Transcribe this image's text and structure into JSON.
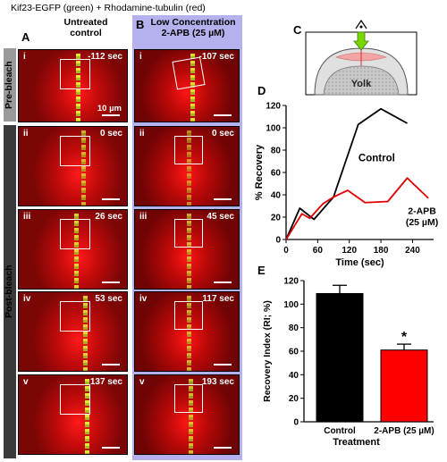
{
  "figure_title": "Kif23-EGFP (green) + Rhodamine-tubulin (red)",
  "panels": {
    "A": {
      "letter": "A",
      "header": [
        "Untreated",
        "control"
      ],
      "scale": "10 µm",
      "frames": [
        {
          "roman": "i",
          "time": "-112 sec"
        },
        {
          "roman": "ii",
          "time": "0 sec"
        },
        {
          "roman": "iii",
          "time": "26 sec"
        },
        {
          "roman": "iv",
          "time": "53 sec"
        },
        {
          "roman": "v",
          "time": "137 sec"
        }
      ]
    },
    "B": {
      "letter": "B",
      "header": [
        "Low Concentration",
        "2-APB (25 µM)"
      ],
      "frames": [
        {
          "roman": "i",
          "time": "-107 sec"
        },
        {
          "roman": "ii",
          "time": "0 sec"
        },
        {
          "roman": "iii",
          "time": "45 sec"
        },
        {
          "roman": "iv",
          "time": "117 sec"
        },
        {
          "roman": "v",
          "time": "193 sec"
        }
      ]
    },
    "C": {
      "letter": "C",
      "yolk_label": "Yolk"
    },
    "D": {
      "letter": "D"
    },
    "E": {
      "letter": "E"
    }
  },
  "side_labels": {
    "pre": "Pre-bleach",
    "post": "Post-bleach"
  },
  "chart_data": [
    {
      "type": "line",
      "panel": "D",
      "xlabel": "Time (sec)",
      "ylabel": "% Recovery",
      "xlim": [
        0,
        280
      ],
      "ylim": [
        0,
        120
      ],
      "xticks": [
        0,
        60,
        120,
        180,
        240
      ],
      "yticks": [
        0,
        20,
        40,
        60,
        80,
        100,
        120
      ],
      "series": [
        {
          "name": "Control",
          "color": "#000000",
          "x": [
            0,
            26,
            53,
            90,
            137,
            180,
            230
          ],
          "y": [
            0,
            28,
            18,
            38,
            103,
            117,
            104
          ]
        },
        {
          "name": "2-APB (25 µM)",
          "color": "#e00000",
          "x": [
            0,
            30,
            45,
            70,
            90,
            117,
            150,
            193,
            230,
            270
          ],
          "y": [
            0,
            23,
            19,
            32,
            38,
            44,
            33,
            34,
            55,
            37
          ]
        }
      ],
      "annotations": [
        "Control",
        "2-APB",
        "(25 µM)"
      ]
    },
    {
      "type": "bar",
      "panel": "E",
      "xlabel": "Treatment",
      "ylabel": "Recovery Index (RI; %)",
      "ylim": [
        0,
        120
      ],
      "yticks": [
        0,
        20,
        40,
        60,
        80,
        100,
        120
      ],
      "categories": [
        "Control",
        "2-APB (25 µM)"
      ],
      "values": [
        109,
        61
      ],
      "errors": [
        7,
        5
      ],
      "colors": [
        "#000000",
        "#ff0000"
      ],
      "significance": [
        "",
        "*"
      ]
    }
  ]
}
